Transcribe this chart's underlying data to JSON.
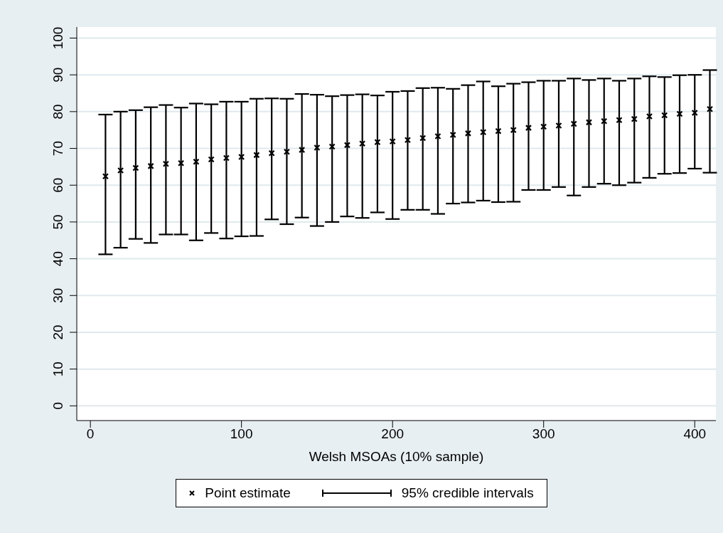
{
  "chart_data": {
    "type": "scatter",
    "xlabel": "Welsh MSOAs (10% sample)",
    "x": [
      10,
      20,
      30,
      40,
      50,
      60,
      70,
      80,
      90,
      100,
      110,
      120,
      130,
      140,
      150,
      160,
      170,
      180,
      190,
      200,
      210,
      220,
      230,
      240,
      250,
      260,
      270,
      280,
      290,
      300,
      310,
      320,
      330,
      340,
      350,
      360,
      370,
      380,
      390,
      400,
      410
    ],
    "series": [
      {
        "name": "Point estimate",
        "color": "#000000",
        "values": [
          62.4,
          64.0,
          64.7,
          65.2,
          65.8,
          66.0,
          66.4,
          67.0,
          67.4,
          67.7,
          68.2,
          68.7,
          69.1,
          69.6,
          70.2,
          70.5,
          70.9,
          71.3,
          71.7,
          71.9,
          72.3,
          72.8,
          73.3,
          73.7,
          74.1,
          74.4,
          74.7,
          75.0,
          75.6,
          75.9,
          76.2,
          76.7,
          77.1,
          77.4,
          77.7,
          78.0,
          78.7,
          79.0,
          79.4,
          79.7,
          80.7
        ],
        "errors": [
          [
            41.2,
            79.2
          ],
          [
            43.0,
            80.0
          ],
          [
            45.4,
            80.4
          ],
          [
            44.3,
            81.2
          ],
          [
            46.6,
            81.8
          ],
          [
            46.6,
            81.1
          ],
          [
            45.0,
            82.2
          ],
          [
            47.0,
            82.0
          ],
          [
            45.5,
            82.7
          ],
          [
            46.1,
            82.7
          ],
          [
            46.2,
            83.5
          ],
          [
            50.7,
            83.6
          ],
          [
            49.4,
            83.5
          ],
          [
            51.2,
            84.8
          ],
          [
            48.9,
            84.6
          ],
          [
            50.0,
            84.2
          ],
          [
            51.5,
            84.5
          ],
          [
            51.1,
            84.7
          ],
          [
            52.6,
            84.4
          ],
          [
            50.8,
            85.4
          ],
          [
            53.3,
            85.6
          ],
          [
            53.3,
            86.4
          ],
          [
            52.2,
            86.5
          ],
          [
            55.0,
            86.2
          ],
          [
            55.3,
            87.2
          ],
          [
            55.8,
            88.2
          ],
          [
            55.4,
            86.9
          ],
          [
            55.5,
            87.6
          ],
          [
            58.7,
            88.0
          ],
          [
            58.7,
            88.4
          ],
          [
            59.5,
            88.4
          ],
          [
            57.2,
            89.0
          ],
          [
            59.5,
            88.6
          ],
          [
            60.4,
            89.0
          ],
          [
            60.0,
            88.4
          ],
          [
            60.7,
            89.0
          ],
          [
            62.0,
            89.6
          ],
          [
            63.1,
            89.4
          ],
          [
            63.3,
            89.9
          ],
          [
            64.5,
            90.0
          ],
          [
            63.4,
            91.3
          ]
        ]
      }
    ],
    "annotations": [
      "95% credible intervals"
    ],
    "xlim": [
      -9,
      414
    ],
    "xticks": [
      0,
      100,
      200,
      300,
      400
    ],
    "ylim": [
      -4,
      103
    ],
    "yticks": [
      0,
      10,
      20,
      30,
      40,
      50,
      60,
      70,
      80,
      90,
      100
    ],
    "grid": "y",
    "legend": "bottom",
    "marker": "cross"
  }
}
